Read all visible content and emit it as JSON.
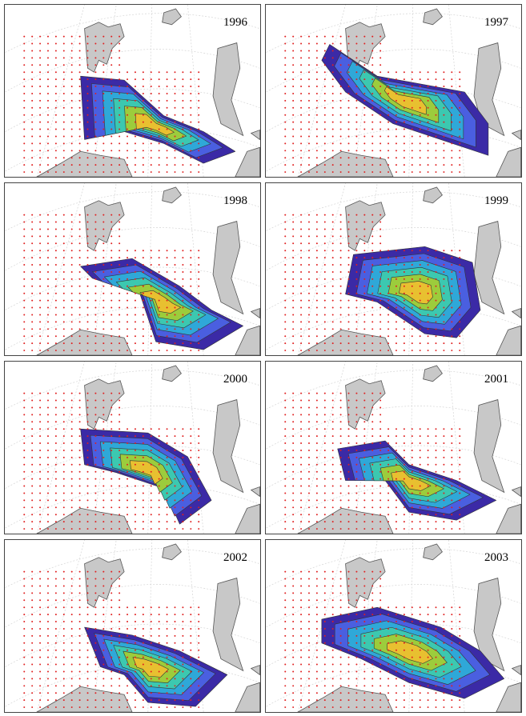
{
  "figure": {
    "layout": {
      "rows": 4,
      "cols": 2
    },
    "colors": {
      "land": "#c8c8c8",
      "coast": "#555555",
      "stations": "#e02020",
      "levels": [
        "#3b2aa6",
        "#4a5fe0",
        "#2fa8d8",
        "#3cc8b0",
        "#9ccc3c",
        "#e8c030"
      ],
      "graticule": "#cccccc"
    },
    "panels": [
      {
        "year": "1996"
      },
      {
        "year": "1997"
      },
      {
        "year": "1998"
      },
      {
        "year": "1999"
      },
      {
        "year": "2000"
      },
      {
        "year": "2001"
      },
      {
        "year": "2002"
      },
      {
        "year": "2003"
      }
    ]
  }
}
